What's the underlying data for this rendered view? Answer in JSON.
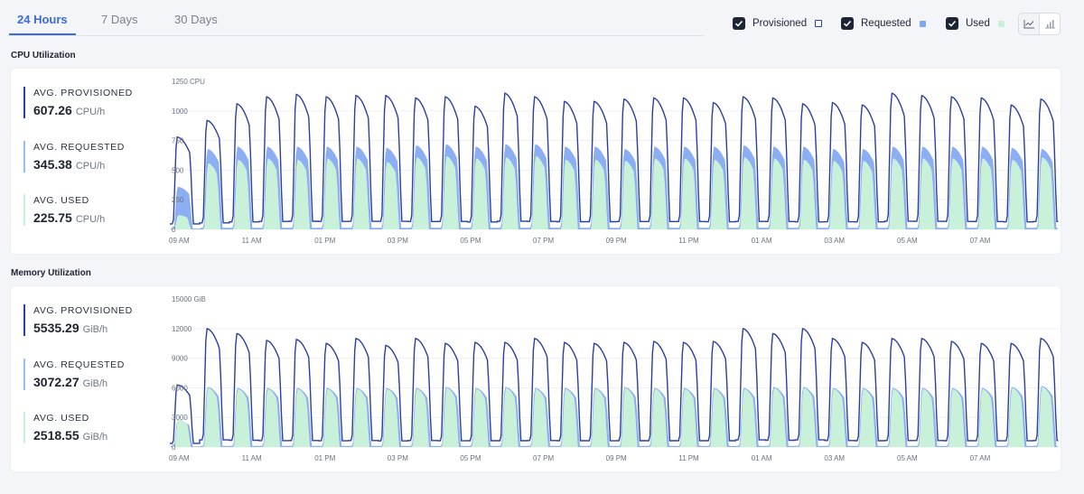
{
  "tabs": [
    {
      "label": "24 Hours",
      "active": true
    },
    {
      "label": "7 Days",
      "active": false
    },
    {
      "label": "30 Days",
      "active": false
    }
  ],
  "legend": {
    "items": [
      {
        "label": "Provisioned",
        "checked": true,
        "color": "#2b3f9e"
      },
      {
        "label": "Requested",
        "checked": true,
        "color": "#7fa6f3"
      },
      {
        "label": "Used",
        "checked": true,
        "color": "#c9f0d9"
      }
    ],
    "chart_toggle": {
      "line_icon": "line-chart-icon",
      "bar_icon": "bar-chart-icon",
      "selected": "line"
    }
  },
  "colors": {
    "provisioned": "#2b3f9e",
    "requested": "#7fa6f3",
    "used": "#c9f0d9",
    "accent": "#3d6ae0"
  },
  "cpu": {
    "title": "CPU Utilization",
    "stats": [
      {
        "label": "AVG. PROVISIONED",
        "value": "607.26",
        "unit": "CPU/h"
      },
      {
        "label": "AVG. REQUESTED",
        "value": "345.38",
        "unit": "CPU/h"
      },
      {
        "label": "AVG. USED",
        "value": "225.75",
        "unit": "CPU/h"
      }
    ],
    "y_unit_label": "1250 CPU",
    "y_ticks": [
      "1000",
      "750",
      "500",
      "250",
      "0"
    ],
    "x_ticks": [
      "09 AM",
      "11 AM",
      "01 PM",
      "03 PM",
      "05 PM",
      "07 PM",
      "09 PM",
      "11 PM",
      "01 AM",
      "03 AM",
      "05 AM",
      "07 AM"
    ]
  },
  "memory": {
    "title": "Memory Utilization",
    "stats": [
      {
        "label": "AVG. PROVISIONED",
        "value": "5535.29",
        "unit": "GiB/h"
      },
      {
        "label": "AVG. REQUESTED",
        "value": "3072.27",
        "unit": "GiB/h"
      },
      {
        "label": "AVG. USED",
        "value": "2518.55",
        "unit": "GiB/h"
      }
    ],
    "y_unit_label": "15000 GiB",
    "y_ticks": [
      "12000",
      "9000",
      "6000",
      "3000",
      "0"
    ],
    "x_ticks": [
      "09 AM",
      "11 AM",
      "01 PM",
      "03 PM",
      "05 PM",
      "07 PM",
      "09 PM",
      "11 PM",
      "01 AM",
      "03 AM",
      "05 AM",
      "07 AM"
    ]
  },
  "chart_data": [
    {
      "type": "area",
      "ylim": [
        0,
        1250
      ],
      "series": [
        {
          "name": "Provisioned",
          "cycle_peaks": [
            780,
            920,
            1060,
            1120,
            1140,
            1120,
            1130,
            1130,
            1110,
            1120,
            1040,
            1150,
            1120,
            1080,
            1080,
            1100,
            1110,
            1110,
            1070,
            1120,
            1110,
            1060,
            1070,
            1050,
            1150,
            1130,
            1120,
            1110,
            1050,
            1100
          ]
        },
        {
          "name": "Requested",
          "cycle_peaks": [
            360,
            680,
            700,
            700,
            700,
            700,
            700,
            690,
            710,
            720,
            700,
            720,
            720,
            700,
            700,
            680,
            700,
            700,
            700,
            710,
            700,
            700,
            680,
            680,
            700,
            700,
            700,
            700,
            690,
            680
          ]
        },
        {
          "name": "Used",
          "cycle_peaks": [
            120,
            560,
            590,
            600,
            590,
            600,
            600,
            570,
            610,
            620,
            600,
            610,
            620,
            590,
            590,
            580,
            600,
            600,
            590,
            610,
            600,
            590,
            580,
            580,
            600,
            600,
            600,
            600,
            590,
            610
          ]
        }
      ]
    },
    {
      "type": "area",
      "ylim": [
        0,
        15000
      ],
      "series": [
        {
          "name": "Provisioned",
          "cycle_peaks": [
            6300,
            12000,
            11500,
            10800,
            10900,
            10500,
            11000,
            10300,
            11000,
            10500,
            10600,
            10600,
            11000,
            10600,
            10500,
            10600,
            10700,
            10600,
            10700,
            12000,
            11500,
            12000,
            11000,
            10600,
            11000,
            11000,
            10700,
            10500,
            10500,
            11000
          ]
        },
        {
          "name": "Requested",
          "cycle_peaks": [
            2700,
            6100,
            6000,
            6000,
            6000,
            6000,
            6000,
            6000,
            6000,
            6100,
            6000,
            6100,
            6000,
            6000,
            6000,
            6100,
            6000,
            6000,
            6000,
            6000,
            6100,
            6100,
            6000,
            6000,
            6000,
            6000,
            6000,
            6000,
            6100,
            6200
          ]
        },
        {
          "name": "Used",
          "cycle_peaks": [
            2800,
            6000,
            5900,
            5900,
            5900,
            5900,
            5900,
            5900,
            5900,
            6000,
            5900,
            6000,
            5900,
            5900,
            5900,
            6000,
            5900,
            5900,
            5900,
            5900,
            6000,
            6000,
            5900,
            5900,
            5900,
            5900,
            5900,
            5900,
            6000,
            6100
          ]
        }
      ]
    }
  ]
}
